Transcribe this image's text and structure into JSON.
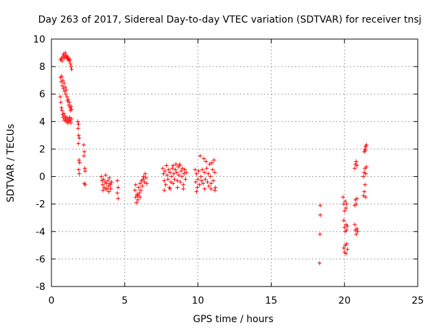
{
  "chart_data": {
    "type": "scatter",
    "title": "Day 263 of 2017, Sidereal Day-to-day VTEC variation (SDTVAR) for receiver tnsj",
    "xlabel": "GPS time / hours",
    "ylabel": "SDTVAR / TECUs",
    "xlim": [
      0,
      25
    ],
    "ylim": [
      -8,
      10
    ],
    "xticks": [
      0,
      5,
      10,
      15,
      20,
      25
    ],
    "yticks": [
      -8,
      -6,
      -4,
      -2,
      0,
      2,
      4,
      6,
      8,
      10
    ],
    "grid": true,
    "marker": "+",
    "color": "#ff0000",
    "series": [
      {
        "name": "SDTVAR",
        "points": [
          [
            0.62,
            8.5
          ],
          [
            0.68,
            8.6
          ],
          [
            0.72,
            8.4
          ],
          [
            0.78,
            8.7
          ],
          [
            0.82,
            8.9
          ],
          [
            0.86,
            8.6
          ],
          [
            0.9,
            8.8
          ],
          [
            0.94,
            9.0
          ],
          [
            0.98,
            8.7
          ],
          [
            1.02,
            8.8
          ],
          [
            1.06,
            8.6
          ],
          [
            1.1,
            8.7
          ],
          [
            1.14,
            8.5
          ],
          [
            1.18,
            8.6
          ],
          [
            1.22,
            8.4
          ],
          [
            1.26,
            8.5
          ],
          [
            1.3,
            8.2
          ],
          [
            1.34,
            8.0
          ],
          [
            1.38,
            7.8
          ],
          [
            0.62,
            7.2
          ],
          [
            0.66,
            6.9
          ],
          [
            0.7,
            7.3
          ],
          [
            0.74,
            6.6
          ],
          [
            0.78,
            7.0
          ],
          [
            0.82,
            6.4
          ],
          [
            0.86,
            6.8
          ],
          [
            0.9,
            6.2
          ],
          [
            0.94,
            6.5
          ],
          [
            0.98,
            6.0
          ],
          [
            1.02,
            6.3
          ],
          [
            1.06,
            5.8
          ],
          [
            1.1,
            5.5
          ],
          [
            1.14,
            5.6
          ],
          [
            1.18,
            5.2
          ],
          [
            1.22,
            5.4
          ],
          [
            1.26,
            5.0
          ],
          [
            1.3,
            4.8
          ],
          [
            1.34,
            5.1
          ],
          [
            1.38,
            4.9
          ],
          [
            0.6,
            5.8
          ],
          [
            0.64,
            5.4
          ],
          [
            0.68,
            5.0
          ],
          [
            0.72,
            4.8
          ],
          [
            0.76,
            4.5
          ],
          [
            0.8,
            4.3
          ],
          [
            0.84,
            4.6
          ],
          [
            0.88,
            4.1
          ],
          [
            0.92,
            4.4
          ],
          [
            0.96,
            4.2
          ],
          [
            1.0,
            4.0
          ],
          [
            1.04,
            4.3
          ],
          [
            1.08,
            4.1
          ],
          [
            1.12,
            3.9
          ],
          [
            1.16,
            4.2
          ],
          [
            1.2,
            4.0
          ],
          [
            1.24,
            4.3
          ],
          [
            1.28,
            4.1
          ],
          [
            1.32,
            3.9
          ],
          [
            1.36,
            4.2
          ],
          [
            1.8,
            4.0
          ],
          [
            1.85,
            3.8
          ],
          [
            1.82,
            3.5
          ],
          [
            1.86,
            3.0
          ],
          [
            1.9,
            2.8
          ],
          [
            1.84,
            2.4
          ],
          [
            1.88,
            1.2
          ],
          [
            1.92,
            1.0
          ],
          [
            1.86,
            0.5
          ],
          [
            1.9,
            0.2
          ],
          [
            2.2,
            2.3
          ],
          [
            2.25,
            1.8
          ],
          [
            2.22,
            1.5
          ],
          [
            2.28,
            0.6
          ],
          [
            2.3,
            0.4
          ],
          [
            2.24,
            -0.5
          ],
          [
            2.3,
            -0.6
          ],
          [
            3.4,
            0.0
          ],
          [
            3.45,
            -0.3
          ],
          [
            3.5,
            -0.6
          ],
          [
            3.55,
            -0.2
          ],
          [
            3.6,
            -0.8
          ],
          [
            3.65,
            -0.4
          ],
          [
            3.7,
            0.1
          ],
          [
            3.75,
            -0.5
          ],
          [
            3.8,
            -0.9
          ],
          [
            3.85,
            -0.3
          ],
          [
            3.9,
            -0.7
          ],
          [
            3.95,
            -0.1
          ],
          [
            4.0,
            -0.5
          ],
          [
            4.05,
            -0.9
          ],
          [
            4.1,
            -0.4
          ],
          [
            3.52,
            -1.0
          ],
          [
            3.72,
            -0.9
          ],
          [
            3.92,
            -1.1
          ],
          [
            4.02,
            -0.6
          ],
          [
            4.5,
            -0.3
          ],
          [
            4.55,
            -0.8
          ],
          [
            4.5,
            -1.2
          ],
          [
            4.55,
            -1.6
          ],
          [
            5.7,
            -1.0
          ],
          [
            5.75,
            -1.5
          ],
          [
            5.8,
            -1.9
          ],
          [
            5.85,
            -1.3
          ],
          [
            5.9,
            -1.7
          ],
          [
            5.95,
            -0.8
          ],
          [
            6.0,
            -1.2
          ],
          [
            6.05,
            -0.5
          ],
          [
            6.1,
            -1.0
          ],
          [
            6.15,
            -0.3
          ],
          [
            6.2,
            -0.7
          ],
          [
            6.25,
            -0.2
          ],
          [
            6.3,
            0.0
          ],
          [
            6.35,
            -0.4
          ],
          [
            6.4,
            0.2
          ],
          [
            6.45,
            -0.1
          ],
          [
            6.5,
            -0.5
          ],
          [
            5.75,
            -0.6
          ],
          [
            5.9,
            -1.4
          ],
          [
            6.05,
            -1.5
          ],
          [
            7.6,
            0.6
          ],
          [
            7.65,
            0.2
          ],
          [
            7.7,
            -0.3
          ],
          [
            7.75,
            0.4
          ],
          [
            7.8,
            -0.6
          ],
          [
            7.85,
            0.8
          ],
          [
            7.9,
            0.1
          ],
          [
            7.95,
            -0.2
          ],
          [
            8.0,
            0.5
          ],
          [
            8.05,
            -0.8
          ],
          [
            8.1,
            0.3
          ],
          [
            8.15,
            -0.4
          ],
          [
            8.2,
            0.0
          ],
          [
            8.25,
            0.6
          ],
          [
            8.3,
            -0.5
          ],
          [
            8.35,
            0.2
          ],
          [
            8.4,
            -0.2
          ],
          [
            8.45,
            0.5
          ],
          [
            8.5,
            0.9
          ],
          [
            8.55,
            0.3
          ],
          [
            8.6,
            -0.3
          ],
          [
            8.65,
            0.7
          ],
          [
            8.7,
            0.1
          ],
          [
            8.75,
            0.8
          ],
          [
            8.8,
            -0.4
          ],
          [
            8.85,
            0.4
          ],
          [
            8.9,
            0.0
          ],
          [
            8.95,
            0.6
          ],
          [
            9.0,
            -0.6
          ],
          [
            9.05,
            0.2
          ],
          [
            9.1,
            0.5
          ],
          [
            9.15,
            -0.2
          ],
          [
            9.2,
            0.3
          ],
          [
            7.7,
            -1.0
          ],
          [
            8.1,
            -0.9
          ],
          [
            8.6,
            -0.8
          ],
          [
            9.0,
            -0.9
          ],
          [
            8.3,
            0.8
          ],
          [
            8.75,
            0.9
          ],
          [
            9.8,
            0.5
          ],
          [
            9.85,
            -0.4
          ],
          [
            9.9,
            0.2
          ],
          [
            9.95,
            -0.8
          ],
          [
            10.0,
            -0.2
          ],
          [
            10.05,
            0.4
          ],
          [
            10.1,
            -0.6
          ],
          [
            10.15,
            1.5
          ],
          [
            10.2,
            0.0
          ],
          [
            10.25,
            -0.3
          ],
          [
            10.3,
            0.5
          ],
          [
            10.35,
            -0.5
          ],
          [
            10.4,
            1.3
          ],
          [
            10.45,
            0.3
          ],
          [
            10.5,
            -0.2
          ],
          [
            10.55,
            1.1
          ],
          [
            10.6,
            0.6
          ],
          [
            10.65,
            -0.4
          ],
          [
            10.7,
            0.2
          ],
          [
            10.75,
            -0.7
          ],
          [
            10.8,
            0.9
          ],
          [
            10.85,
            0.0
          ],
          [
            10.9,
            -0.5
          ],
          [
            10.95,
            1.0
          ],
          [
            11.0,
            0.5
          ],
          [
            11.05,
            -0.3
          ],
          [
            11.1,
            1.2
          ],
          [
            11.15,
            0.3
          ],
          [
            11.2,
            -0.8
          ],
          [
            9.9,
            -1.1
          ],
          [
            10.45,
            -0.9
          ],
          [
            10.9,
            -0.9
          ],
          [
            11.15,
            -1.0
          ],
          [
            18.35,
            -2.1
          ],
          [
            18.35,
            -2.8
          ],
          [
            18.33,
            -4.2
          ],
          [
            18.3,
            -6.3
          ],
          [
            19.9,
            -1.5
          ],
          [
            19.95,
            -2.0
          ],
          [
            20.0,
            -2.5
          ],
          [
            20.05,
            -1.8
          ],
          [
            20.1,
            -2.3
          ],
          [
            20.15,
            -2.0
          ],
          [
            19.95,
            -3.2
          ],
          [
            20.0,
            -3.7
          ],
          [
            20.05,
            -4.0
          ],
          [
            20.1,
            -3.5
          ],
          [
            20.15,
            -3.9
          ],
          [
            20.2,
            -3.6
          ],
          [
            19.95,
            -5.2
          ],
          [
            20.0,
            -5.5
          ],
          [
            20.05,
            -5.0
          ],
          [
            20.1,
            -5.6
          ],
          [
            20.15,
            -4.9
          ],
          [
            20.2,
            -5.3
          ],
          [
            20.7,
            -2.1
          ],
          [
            20.75,
            -1.7
          ],
          [
            20.8,
            -2.0
          ],
          [
            20.85,
            -1.6
          ],
          [
            20.7,
            -3.5
          ],
          [
            20.75,
            -3.9
          ],
          [
            20.8,
            -4.2
          ],
          [
            20.85,
            -3.8
          ],
          [
            20.9,
            -4.0
          ],
          [
            20.7,
            0.6
          ],
          [
            20.75,
            0.9
          ],
          [
            20.8,
            1.1
          ],
          [
            20.85,
            0.8
          ],
          [
            21.3,
            -1.4
          ],
          [
            21.35,
            -1.1
          ],
          [
            21.4,
            -0.6
          ],
          [
            21.45,
            -1.5
          ],
          [
            21.3,
            0.0
          ],
          [
            21.35,
            0.3
          ],
          [
            21.4,
            0.6
          ],
          [
            21.45,
            0.2
          ],
          [
            21.5,
            0.7
          ],
          [
            21.35,
            1.8
          ],
          [
            21.4,
            2.0
          ],
          [
            21.45,
            2.2
          ],
          [
            21.5,
            2.3
          ],
          [
            21.42,
            1.9
          ]
        ]
      }
    ]
  }
}
